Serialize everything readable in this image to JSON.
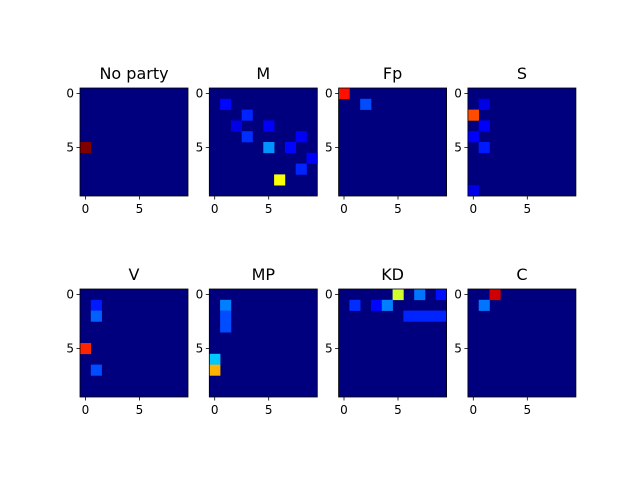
{
  "chart_data": {
    "type": "heatmap",
    "colormap": "jet",
    "background_color": "#00007f",
    "grid": false,
    "layout": "2 rows x 4 columns",
    "xticks": [
      0,
      5
    ],
    "yticks": [
      0,
      5
    ],
    "xlim": [
      -0.5,
      9.5
    ],
    "ylim": [
      9.5,
      -0.5
    ],
    "panels": [
      {
        "title": "No party",
        "cells": [
          [
            5,
            0,
            1.0
          ]
        ]
      },
      {
        "title": "M",
        "cells": [
          [
            1,
            1,
            0.13
          ],
          [
            2,
            3,
            0.16
          ],
          [
            3,
            2,
            0.1
          ],
          [
            3,
            5,
            0.12
          ],
          [
            4,
            3,
            0.17
          ],
          [
            4,
            8,
            0.12
          ],
          [
            5,
            5,
            0.27
          ],
          [
            5,
            7,
            0.13
          ],
          [
            6,
            9,
            0.12
          ],
          [
            7,
            8,
            0.16
          ],
          [
            8,
            6,
            0.62
          ]
        ]
      },
      {
        "title": "Fp",
        "cells": [
          [
            0,
            0,
            0.86
          ],
          [
            1,
            2,
            0.2
          ]
        ]
      },
      {
        "title": "S",
        "cells": [
          [
            1,
            1,
            0.1
          ],
          [
            2,
            0,
            0.8
          ],
          [
            3,
            1,
            0.12
          ],
          [
            4,
            0,
            0.12
          ],
          [
            5,
            1,
            0.15
          ],
          [
            9,
            0,
            0.1
          ]
        ]
      },
      {
        "title": "V",
        "cells": [
          [
            1,
            1,
            0.15
          ],
          [
            2,
            1,
            0.22
          ],
          [
            5,
            0,
            0.84
          ],
          [
            7,
            1,
            0.2
          ]
        ]
      },
      {
        "title": "MP",
        "cells": [
          [
            1,
            1,
            0.25
          ],
          [
            2,
            1,
            0.2
          ],
          [
            3,
            1,
            0.2
          ],
          [
            6,
            0,
            0.32
          ],
          [
            7,
            0,
            0.7
          ]
        ]
      },
      {
        "title": "KD",
        "cells": [
          [
            0,
            5,
            0.58
          ],
          [
            0,
            7,
            0.24
          ],
          [
            0,
            9,
            0.14
          ],
          [
            1,
            1,
            0.17
          ],
          [
            1,
            3,
            0.13
          ],
          [
            1,
            4,
            0.25
          ],
          [
            2,
            6,
            0.16
          ],
          [
            2,
            7,
            0.16
          ],
          [
            2,
            8,
            0.16
          ],
          [
            2,
            9,
            0.16
          ]
        ]
      },
      {
        "title": "C",
        "cells": [
          [
            0,
            2,
            0.92
          ],
          [
            1,
            1,
            0.24
          ]
        ]
      }
    ]
  }
}
